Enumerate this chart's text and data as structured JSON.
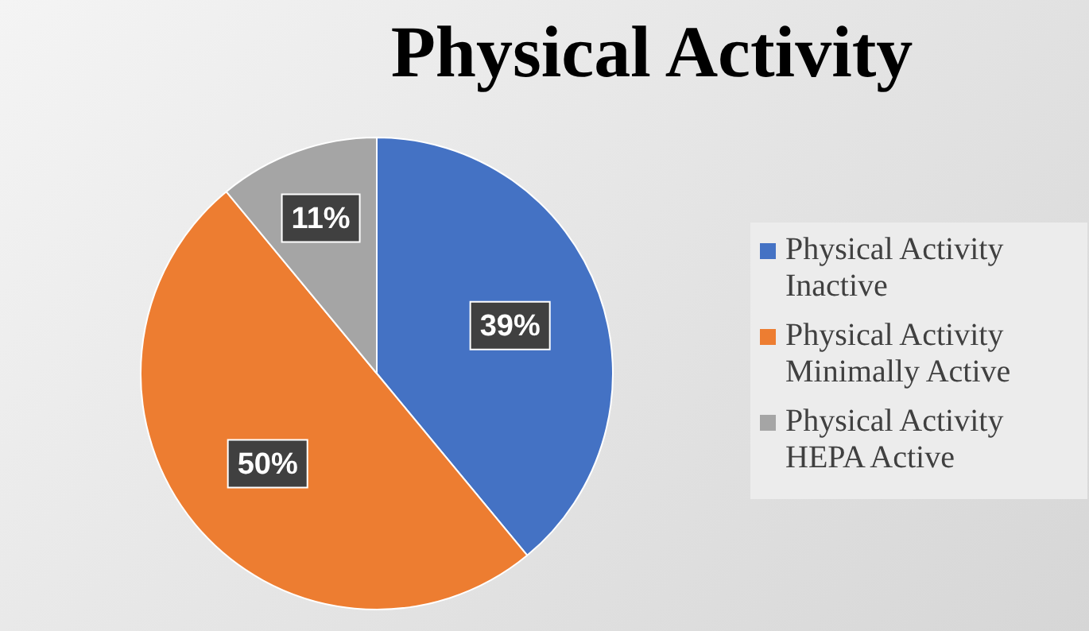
{
  "chart_data": {
    "type": "pie",
    "title": "Physical Activity",
    "categories": [
      "Physical Activity Inactive",
      "Physical Activity Minimally Active",
      "Physical Activity HEPA Active"
    ],
    "values": [
      39,
      50,
      11
    ],
    "colors": [
      "#4472c4",
      "#ed7d31",
      "#a5a5a5"
    ],
    "value_labels": [
      "39%",
      "50%",
      "11%"
    ],
    "legend": "right"
  }
}
